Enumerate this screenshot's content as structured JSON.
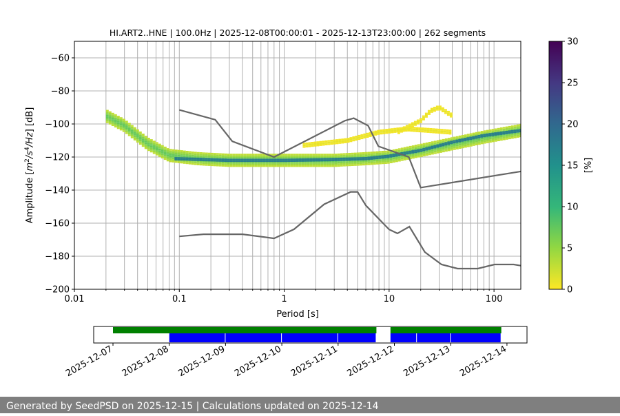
{
  "chart_data": {
    "type": "heatmap",
    "title": "HI.ART2..HNE | 100.0Hz | 2025-12-08T00:00:01 - 2025-12-13T23:00:00 | 262 segments",
    "xlabel": "Period [s]",
    "ylabel": "Amplitude [m²/s⁴/Hz] [dB]",
    "ylabel_parts": {
      "pre": "Amplitude [",
      "m": "m",
      "two": "2",
      "s": "/s",
      "four": "4",
      "hz": "/Hz",
      "post": "] [dB]"
    },
    "x_scale": "log",
    "xlim": [
      0.01,
      180
    ],
    "ylim": [
      -200,
      -50
    ],
    "x_ticks": [
      {
        "value": 0.01,
        "label": "0.01"
      },
      {
        "value": 0.1,
        "label": "0.1"
      },
      {
        "value": 1,
        "label": "1"
      },
      {
        "value": 10,
        "label": "10"
      },
      {
        "value": 100,
        "label": "100"
      }
    ],
    "y_ticks": [
      {
        "value": -60,
        "label": "−60"
      },
      {
        "value": -80,
        "label": "−80"
      },
      {
        "value": -100,
        "label": "−100"
      },
      {
        "value": -120,
        "label": "−120"
      },
      {
        "value": -140,
        "label": "−140"
      },
      {
        "value": -160,
        "label": "−160"
      },
      {
        "value": -180,
        "label": "−180"
      },
      {
        "value": -200,
        "label": "−200"
      }
    ],
    "grid": true,
    "colorbar": {
      "label": "[%]",
      "range": [
        0,
        30
      ],
      "ticks": [
        {
          "value": 0,
          "label": "0"
        },
        {
          "value": 5,
          "label": "5"
        },
        {
          "value": 10,
          "label": "10"
        },
        {
          "value": 15,
          "label": "15"
        },
        {
          "value": 20,
          "label": "20"
        },
        {
          "value": 25,
          "label": "25"
        },
        {
          "value": 30,
          "label": "30"
        }
      ],
      "colormap": [
        "#fde725",
        "#90d743",
        "#35b779",
        "#21918c",
        "#31688e",
        "#443983",
        "#440154"
      ]
    },
    "psd_bands": [
      {
        "name": "main-trend",
        "points": [
          [
            0.02,
            -95
          ],
          [
            0.03,
            -101
          ],
          [
            0.05,
            -112
          ],
          [
            0.08,
            -119
          ],
          [
            0.15,
            -121
          ],
          [
            0.3,
            -122
          ],
          [
            1,
            -122
          ],
          [
            3,
            -122
          ],
          [
            6,
            -121
          ],
          [
            10,
            -120
          ],
          [
            20,
            -116
          ],
          [
            40,
            -112
          ],
          [
            80,
            -108
          ],
          [
            180,
            -104
          ]
        ],
        "width_db": 8,
        "percent": 8
      },
      {
        "name": "main-core",
        "points": [
          [
            0.09,
            -121
          ],
          [
            0.3,
            -122
          ],
          [
            1,
            -122
          ],
          [
            3,
            -121.5
          ],
          [
            6,
            -121
          ],
          [
            10,
            -119.5
          ],
          [
            20,
            -116
          ],
          [
            40,
            -111
          ],
          [
            80,
            -107
          ],
          [
            180,
            -104
          ]
        ],
        "width_db": 2,
        "percent": 28
      },
      {
        "name": "secondary-upper",
        "points": [
          [
            12,
            -105
          ],
          [
            20,
            -98
          ],
          [
            25,
            -92
          ],
          [
            30,
            -90
          ],
          [
            40,
            -95
          ]
        ],
        "width_db": 3,
        "percent": 1
      },
      {
        "name": "secondary-lower",
        "points": [
          [
            1.5,
            -113
          ],
          [
            4,
            -110
          ],
          [
            8,
            -105
          ],
          [
            15,
            -103
          ],
          [
            25,
            -104
          ],
          [
            40,
            -105
          ]
        ],
        "width_db": 3,
        "percent": 1
      }
    ],
    "noise_models": [
      {
        "name": "upper-noise-model",
        "points": [
          [
            0.1,
            -91.5
          ],
          [
            0.22,
            -97.4
          ],
          [
            0.32,
            -110.5
          ],
          [
            0.8,
            -120
          ],
          [
            3.8,
            -98
          ],
          [
            4.6,
            -96.5
          ],
          [
            6.3,
            -101
          ],
          [
            7.9,
            -113.5
          ],
          [
            15.4,
            -120
          ],
          [
            20,
            -138.5
          ],
          [
            180,
            -128.7
          ]
        ]
      },
      {
        "name": "lower-noise-model",
        "points": [
          [
            0.1,
            -168
          ],
          [
            0.17,
            -166.7
          ],
          [
            0.4,
            -166.7
          ],
          [
            0.8,
            -169.2
          ],
          [
            1.24,
            -163.7
          ],
          [
            2.4,
            -148.6
          ],
          [
            4.3,
            -141.1
          ],
          [
            5.0,
            -141.1
          ],
          [
            6.0,
            -149.3
          ],
          [
            10,
            -163.8
          ],
          [
            12,
            -166.2
          ],
          [
            15.6,
            -162.1
          ],
          [
            21.9,
            -177.5
          ],
          [
            31.6,
            -185
          ],
          [
            45,
            -187.5
          ],
          [
            70,
            -187.5
          ],
          [
            101,
            -185
          ],
          [
            154,
            -185
          ],
          [
            180,
            -185.7
          ]
        ]
      }
    ]
  },
  "coverage": {
    "start_labels": [
      "2025-12-07",
      "2025-12-08",
      "2025-12-09",
      "2025-12-10",
      "2025-12-11",
      "2025-12-12",
      "2025-12-13",
      "2025-12-14"
    ],
    "availability_days": [
      [
        0,
        4.68
      ],
      [
        4.93,
        6.9
      ]
    ],
    "used_segments_days": [
      [
        1.0,
        2.0
      ],
      [
        2.0,
        3.0
      ],
      [
        3.0,
        4.0
      ],
      [
        4.0,
        4.68
      ],
      [
        4.93,
        5.4
      ],
      [
        5.4,
        6.0
      ],
      [
        6.0,
        6.9
      ]
    ],
    "colors": {
      "availability": "#008000",
      "used": "#0000ff"
    }
  },
  "footer": {
    "text": "Generated by SeedPSD on 2025-12-15 | Calculations updated on 2025-12-14"
  }
}
